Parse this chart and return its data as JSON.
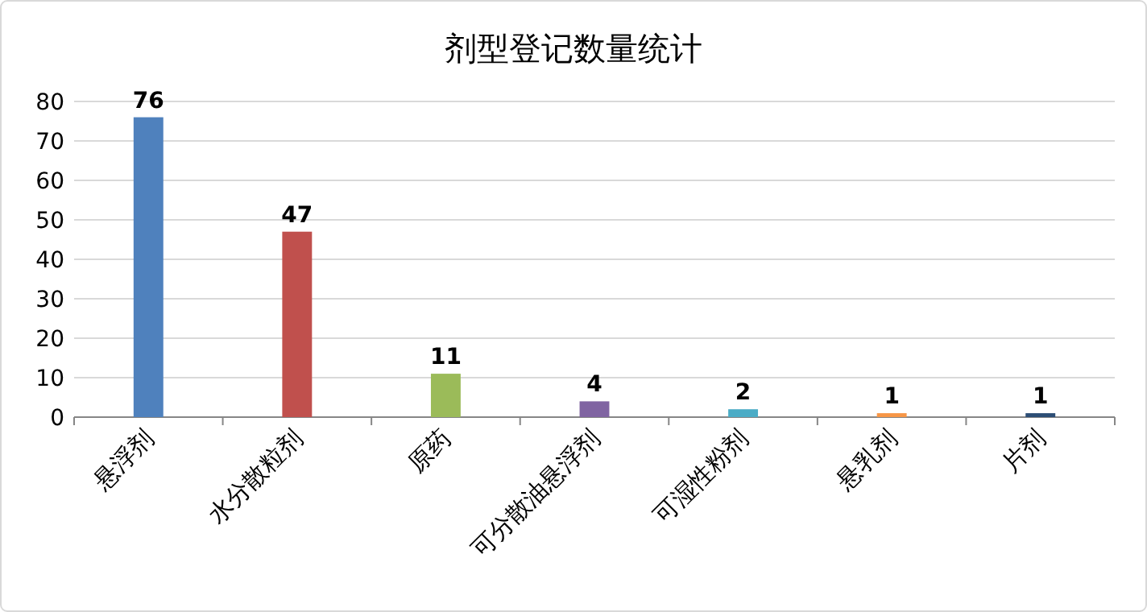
{
  "chart_data": {
    "type": "bar",
    "title": "剂型登记数量统计",
    "categories": [
      "悬浮剂",
      "水分散粒剂",
      "原药",
      "可分散油悬浮剂",
      "可湿性粉剂",
      "悬乳剂",
      "片剂"
    ],
    "values": [
      76,
      47,
      11,
      4,
      2,
      1,
      1
    ],
    "colors": [
      "#4f81bd",
      "#c0504d",
      "#9bbb59",
      "#8064a2",
      "#4bacc6",
      "#f79646",
      "#2c4d75"
    ],
    "ylim": [
      0,
      80
    ],
    "yticks": [
      0,
      10,
      20,
      30,
      40,
      50,
      60,
      70,
      80
    ],
    "grid": "y",
    "data_labels": true
  }
}
